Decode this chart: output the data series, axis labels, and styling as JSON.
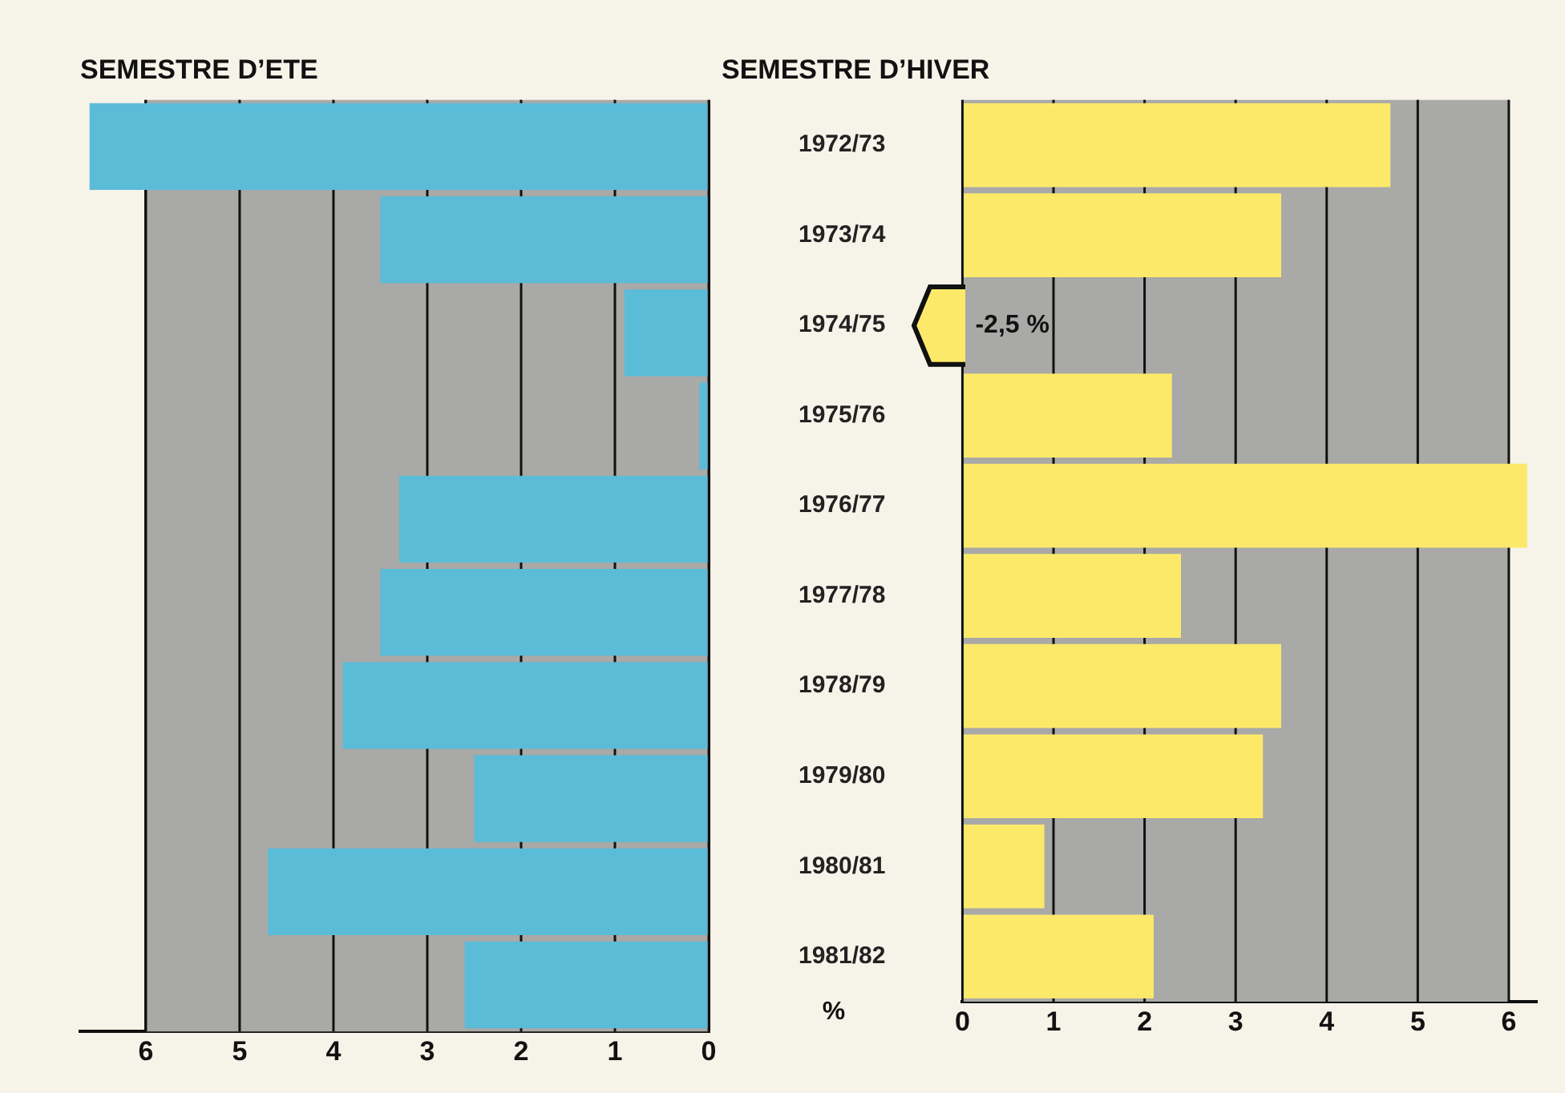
{
  "chart_data": [
    {
      "type": "bar",
      "orientation": "horizontal",
      "title": "SEMESTRE D’ETE",
      "categories": [
        "1972/73",
        "1973/74",
        "1974/75",
        "1975/76",
        "1976/77",
        "1977/78",
        "1978/79",
        "1979/80",
        "1980/81",
        "1981/82"
      ],
      "values": [
        6.6,
        3.5,
        0.9,
        0.1,
        3.3,
        3.5,
        3.9,
        2.5,
        4.7,
        2.6
      ],
      "color": "#5bbcd8",
      "xlim": [
        6.7,
        0
      ],
      "xticks": [
        0,
        1,
        2,
        3,
        4,
        5,
        6
      ],
      "grid": "x",
      "tick_labels": "x",
      "legend": false,
      "bands": [
        {
          "axis": "x",
          "from": 0,
          "to": 6,
          "color": "#a9a9a7"
        }
      ]
    },
    {
      "type": "bar",
      "orientation": "horizontal",
      "title": "SEMESTRE D’HIVER",
      "categories": [
        "1972/73",
        "1973/74",
        "1974/75",
        "1975/76",
        "1976/77",
        "1977/78",
        "1978/79",
        "1979/80",
        "1980/81",
        "1981/82"
      ],
      "values": [
        4.7,
        3.5,
        null,
        2.3,
        6.2,
        2.4,
        3.5,
        3.3,
        0.9,
        2.1
      ],
      "color": "#fce96a",
      "xlim": [
        0,
        6.3
      ],
      "xticks": [
        0,
        1,
        2,
        3,
        4,
        5,
        6
      ],
      "grid": "x",
      "legend": false,
      "xlabel": "%",
      "bands": [
        {
          "axis": "x",
          "from": 0,
          "to": 6,
          "color": "#a9a9a7"
        }
      ],
      "annotations": [
        "-2,5 %"
      ]
    }
  ]
}
